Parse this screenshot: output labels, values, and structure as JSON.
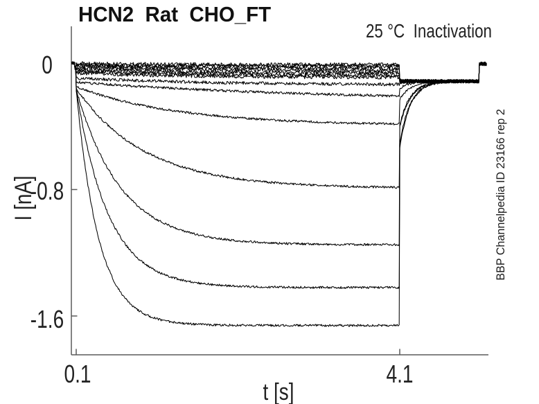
{
  "chart_data": {
    "type": "line",
    "title": "HCN2  Rat  CHO_FT",
    "annotation": "25 °C  Inactivation",
    "right_label": "BBP Channelpedia ID 23166 rep 2",
    "xlabel": "t [s]",
    "ylabel": "I [nA]",
    "x_ticks": [
      "0.1",
      "4.1"
    ],
    "x_tick_values": [
      0.1,
      4.1
    ],
    "y_ticks": [
      "0",
      "-0.8",
      "-1.6"
    ],
    "y_tick_values": [
      0,
      -0.8,
      -1.6
    ],
    "xlim": [
      0.04,
      5.2
    ],
    "ylim": [
      -1.85,
      0.23
    ],
    "grid": false,
    "legend": "none",
    "line_color": "#000000",
    "axis_color": "#5a5a5a",
    "background_color": "#ffffff",
    "protocol": {
      "t_baseline_start": 0.045,
      "t_prestep": 0.082,
      "prestep_value": -0.03,
      "t_step": 0.1,
      "t_step_end": 4.1,
      "tail_level": -0.115,
      "tail_tau": 0.13,
      "t_end_jump": 5.085,
      "end_value": -0.005,
      "t_end": 5.18,
      "sample_dt": 0.008
    },
    "traces": [
      {
        "i_inst": -0.003,
        "i_final": -0.01,
        "tau": 1.0,
        "tail_start": -0.11,
        "noise": 0.012
      },
      {
        "i_inst": -0.012,
        "i_final": -0.02,
        "tau": 1.1,
        "tail_start": -0.112,
        "noise": 0.012
      },
      {
        "i_inst": -0.02,
        "i_final": -0.032,
        "tau": 1.2,
        "tail_start": -0.113,
        "noise": 0.012
      },
      {
        "i_inst": -0.03,
        "i_final": -0.046,
        "tau": 1.2,
        "tail_start": -0.114,
        "noise": 0.012
      },
      {
        "i_inst": -0.042,
        "i_final": -0.062,
        "tau": 1.3,
        "tail_start": -0.115,
        "noise": 0.012
      },
      {
        "i_inst": -0.052,
        "i_final": -0.077,
        "tau": 1.4,
        "tail_start": -0.116,
        "noise": 0.012
      },
      {
        "i_inst": -0.063,
        "i_final": -0.092,
        "tau": 1.5,
        "tail_start": -0.117,
        "noise": 0.012
      },
      {
        "i_inst": -0.095,
        "i_final": -0.14,
        "tau": 1.8,
        "tail_start": -0.135,
        "noise": 0.01
      },
      {
        "i_inst": -0.12,
        "i_final": -0.24,
        "tau": 3.0,
        "tail_start": -0.16,
        "noise": 0.008
      },
      {
        "i_inst": -0.15,
        "i_final": -0.395,
        "tau": 1.25,
        "tail_start": -0.23,
        "noise": 0.007
      },
      {
        "i_inst": -0.16,
        "i_final": -0.792,
        "tau": 0.85,
        "tail_start": -0.39,
        "noise": 0.007
      },
      {
        "i_inst": -0.168,
        "i_final": -1.15,
        "tau": 0.55,
        "tail_start": -0.405,
        "noise": 0.007
      },
      {
        "i_inst": -0.17,
        "i_final": -1.42,
        "tau": 0.4,
        "tail_start": -0.51,
        "noise": 0.007
      },
      {
        "i_inst": -0.17,
        "i_final": -1.66,
        "tau": 0.28,
        "tail_start": -0.535,
        "noise": 0.007
      }
    ]
  }
}
